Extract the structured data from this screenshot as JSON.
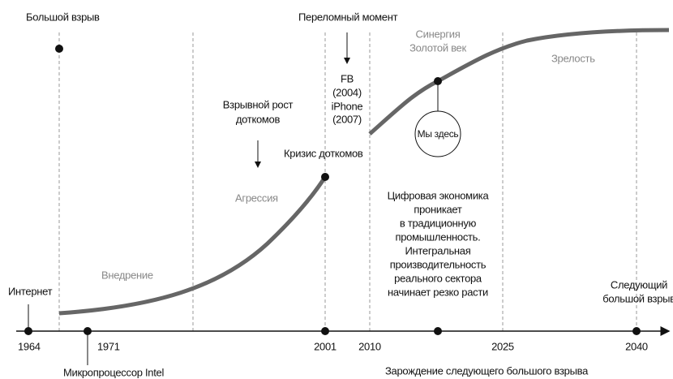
{
  "events": {
    "big_bang": "Большой взрыв",
    "internet": "Интернет",
    "intel": "Микропроцессор Intel",
    "turning_point": "Переломный момент",
    "fb_iphone": [
      "FB",
      "(2004)",
      "iPhone",
      "(2007)"
    ],
    "dotcom_boom": [
      "Взрывной рост",
      "доткомов"
    ],
    "dotcom_crisis": "Кризис доткомов",
    "we_are_here": "Мы здесь",
    "next_big_bang": [
      "Следующий",
      "большой взрыв"
    ],
    "next_origin": "Зарождение следующего большого взрыва"
  },
  "phases": {
    "installation": "Внедрение",
    "frenzy": "Агрессия",
    "synergy": [
      "Синергия",
      "Золотой век"
    ],
    "maturity": "Зрелость"
  },
  "description": [
    "Цифровая экономика",
    "проникает",
    "в традиционную",
    "промышленность.",
    "Интегральная",
    "производительность",
    "реального сектора",
    "начинает резко расти"
  ],
  "years": [
    "1964",
    "1971",
    "2001",
    "2010",
    "2025",
    "2040"
  ]
}
